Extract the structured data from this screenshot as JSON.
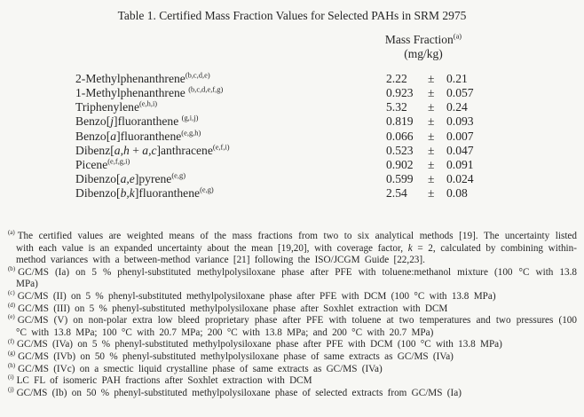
{
  "title": "Table 1.  Certified Mass Fraction Values for Selected PAHs in SRM 2975",
  "header": {
    "column_label": "Mass Fraction",
    "column_label_sup": "(a)",
    "column_unit": "(mg/kg)"
  },
  "symbols": {
    "plus_minus": "±"
  },
  "rows": [
    {
      "pre": "2-Methylphenanthrene",
      "sup": "(b,c,d,e)",
      "value": "2.22",
      "unc": "0.21"
    },
    {
      "pre": "1-Methylphenanthrene ",
      "sup": "(b,c,d,e,f,g)",
      "value": "0.923",
      "unc": "0.057"
    },
    {
      "pre": "Triphenylene",
      "sup": "(e,h,i)",
      "value": "5.32",
      "unc": "0.24"
    },
    {
      "pre": "Benzo[",
      "it": "j",
      "mid": "]fluoranthene ",
      "sup": "(g,i,j)",
      "value": "0.819",
      "unc": "0.093"
    },
    {
      "pre": "Benzo[",
      "it": "a",
      "mid": "]fluoranthene",
      "sup": "(e,g,h)",
      "value": "0.066",
      "unc": "0.007"
    },
    {
      "pre": "Dibenz[",
      "it": "a,h",
      "mid": " + ",
      "it2": "a,c",
      "post": "]anthracene",
      "sup": "(e,f,i)",
      "value": "0.523",
      "unc": "0.047"
    },
    {
      "pre": "Picene",
      "sup": "(e,f,g,i)",
      "value": "0.902",
      "unc": "0.091"
    },
    {
      "pre": "Dibenzo[",
      "it": "a,e",
      "mid": "]pyrene",
      "sup": "(e,g)",
      "value": "0.599",
      "unc": "0.024"
    },
    {
      "pre": "Dibenzo[",
      "it": "b,k",
      "mid": "]fluoranthene",
      "sup": "(e,g)",
      "value": "2.54",
      "unc": "0.08"
    }
  ],
  "footnotes": [
    {
      "marker": "(a)",
      "t1": "The certified values are weighted means of the mass fractions from two to six analytical methods [19].  The uncertainty listed with each value is an expanded uncertainty about the mean [19,20], with coverage factor, ",
      "it": "k",
      "t2": " = 2, calculated by combining within-method variances with a between-method variance [21] following the ISO/JCGM Guide [22,23]."
    },
    {
      "marker": "(b)",
      "t1": "GC/MS (Ia) on 5 % phenyl-substituted methylpolysiloxane phase after PFE with toluene:methanol mixture (100 °C with 13.8 MPa)"
    },
    {
      "marker": "(c)",
      "t1": "GC/MS (II) on 5 % phenyl-substituted methylpolysiloxane phase after PFE with DCM (100 °C with 13.8 MPa)"
    },
    {
      "marker": "(d)",
      "t1": "GC/MS (III) on 5 % phenyl-substituted methylpolysiloxane phase after Soxhlet extraction with DCM"
    },
    {
      "marker": "(e)",
      "t1": "GC/MS (V) on non-polar extra low bleed proprietary phase after PFE with toluene at two temperatures and two pressures (100 °C with 13.8 MPa; 100 °C with 20.7 MPa; 200 °C with 13.8 MPa; and 200 °C with 20.7 MPa)"
    },
    {
      "marker": "(f)",
      "t1": "GC/MS (IVa) on 5 % phenyl-substituted methylpolysiloxane phase after PFE with DCM (100 °C with 13.8 MPa)"
    },
    {
      "marker": "(g)",
      "t1": "GC/MS (IVb) on 50 % phenyl-substituted methylpolysiloxane phase of same extracts as GC/MS (IVa)"
    },
    {
      "marker": "(h)",
      "t1": "GC/MS (IVc) on a smectic liquid crystalline phase of same extracts as GC/MS (IVa)"
    },
    {
      "marker": "(i)",
      "t1": "LC FL of isomeric PAH fractions after Soxhlet extraction with DCM"
    },
    {
      "marker": "(j)",
      "t1": "GC/MS (Ib) on 50 % phenyl-substituted methylpolysiloxane phase of selected extracts from GC/MS (Ia)"
    }
  ],
  "colors": {
    "background": "#f7f7f4",
    "text": "#262626"
  }
}
